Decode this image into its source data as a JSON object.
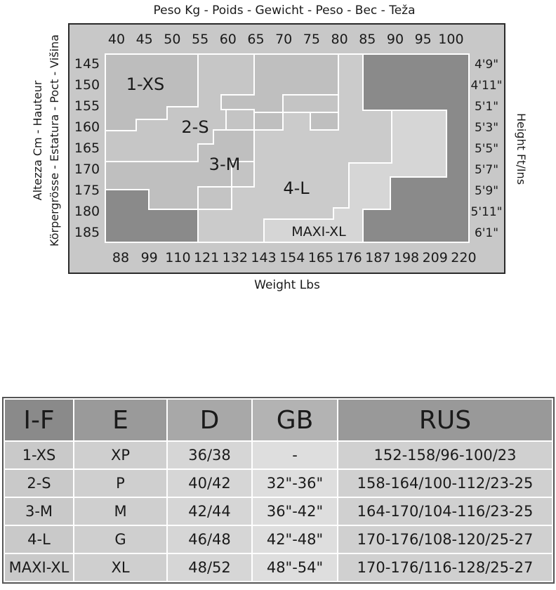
{
  "chart": {
    "title_top": "Peso Kg - Poids - Gewicht - Peso - Bec - Teža",
    "title_bottom": "Weight Lbs",
    "left_label_1": "Altezza Cm - Hauteur",
    "left_label_2": "Körpergrösse - Estatura - Poct - Višina",
    "right_label": "Height Ft/Ins",
    "kg_ticks": [
      "40",
      "45",
      "50",
      "55",
      "60",
      "65",
      "70",
      "75",
      "80",
      "85",
      "90",
      "95",
      "100"
    ],
    "lbs_ticks": [
      "88",
      "99",
      "110",
      "121",
      "132",
      "143",
      "154",
      "165",
      "176",
      "187",
      "198",
      "209",
      "220"
    ],
    "cm_ticks": [
      "145",
      "150",
      "155",
      "160",
      "165",
      "170",
      "175",
      "180",
      "185"
    ],
    "ft_ticks": [
      "4'9\"",
      "4'11\"",
      "5'1\"",
      "5'3\"",
      "5'5\"",
      "5'7\"",
      "5'9\"",
      "5'11\"",
      "6'1\""
    ],
    "zones": [
      "1-XS",
      "2-S",
      "3-M",
      "4-L",
      "MAXI-XL"
    ],
    "colors": {
      "frame": "#c8c8c8",
      "zone_xs": "#bdbdbd",
      "zone_s": "#c9c9c9",
      "zone_m": "#bfbfbf",
      "zone_l": "#cdcdcd",
      "zone_xl": "#d8d8d8",
      "dark": "#8a8a8a"
    }
  },
  "table": {
    "headers": [
      "I-F",
      "E",
      "D",
      "GB",
      "RUS"
    ],
    "rows": [
      [
        "1-XS",
        "XP",
        "36/38",
        "-",
        "152-158/96-100/23"
      ],
      [
        "2-S",
        "P",
        "40/42",
        "32\"-36\"",
        "158-164/100-112/23-25"
      ],
      [
        "3-M",
        "M",
        "42/44",
        "36\"-42\"",
        "164-170/104-116/23-25"
      ],
      [
        "4-L",
        "G",
        "46/48",
        "42\"-48\"",
        "170-176/108-120/25-27"
      ],
      [
        "MAXI-XL",
        "XL",
        "48/52",
        "48\"-54\"",
        "170-176/116-128/25-27"
      ]
    ]
  }
}
